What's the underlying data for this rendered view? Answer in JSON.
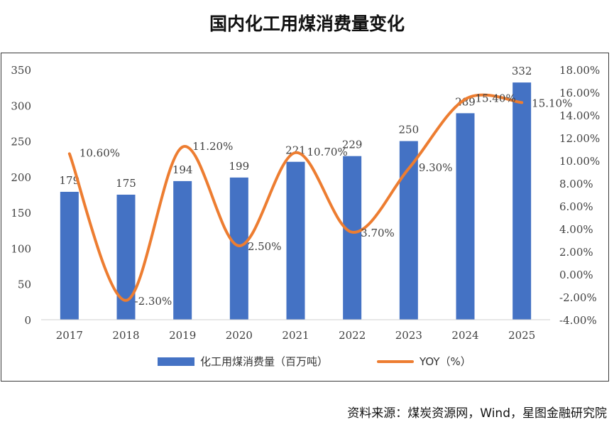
{
  "title": "国内化工用煤消费量变化",
  "source": "资料来源：煤炭资源网，Wind，星图金融研究院",
  "colors": {
    "bar": "#4472C4",
    "line": "#ED7D31",
    "axis": "#d0d0d0",
    "text": "#404040"
  },
  "chart_data": {
    "type": "bar",
    "categories": [
      "2017",
      "2018",
      "2019",
      "2020",
      "2021",
      "2022",
      "2023",
      "2024",
      "2025"
    ],
    "series": [
      {
        "name": "化工用煤消费量（百万吨）",
        "type": "bar",
        "axis": "left",
        "values": [
          179,
          175,
          194,
          199,
          221,
          229,
          250,
          289,
          332
        ],
        "labels": [
          "179",
          "175",
          "194",
          "199",
          "221",
          "229",
          "250",
          "289",
          "332"
        ]
      },
      {
        "name": "YOY（%）",
        "type": "line",
        "axis": "right",
        "smooth": true,
        "values": [
          10.6,
          -2.3,
          11.2,
          2.5,
          10.7,
          3.7,
          9.3,
          15.4,
          15.1
        ],
        "labels": [
          "10.60%",
          "-2.30%",
          "11.20%",
          "2.50%",
          "10.70%",
          "3.70%",
          "9.30%",
          "15.40%",
          "15.10%"
        ]
      }
    ],
    "ylim_left": [
      0,
      350
    ],
    "yticks_left": [
      "0",
      "50",
      "100",
      "150",
      "200",
      "250",
      "300",
      "350"
    ],
    "ylim_right": [
      -4,
      18
    ],
    "yticks_right": [
      "-4.00%",
      "-2.00%",
      "0.00%",
      "2.00%",
      "4.00%",
      "6.00%",
      "8.00%",
      "10.00%",
      "12.00%",
      "14.00%",
      "16.00%",
      "18.00%"
    ],
    "grid": false,
    "legend": "bottom"
  }
}
